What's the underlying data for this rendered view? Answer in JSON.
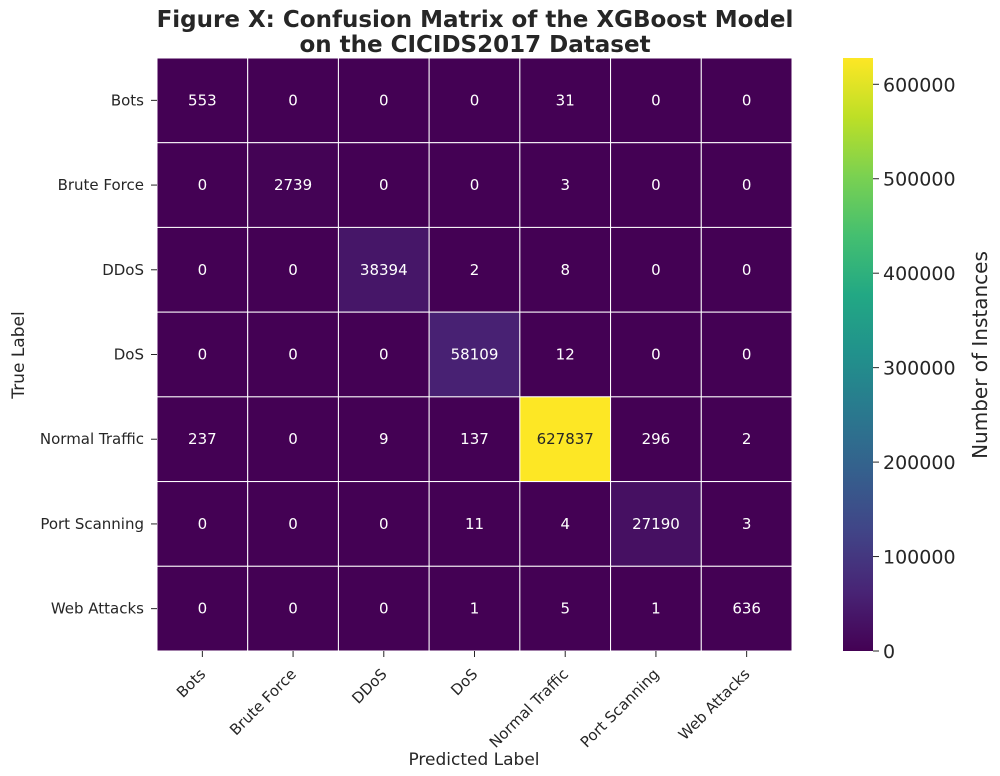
{
  "chart_data": {
    "type": "heatmap",
    "title": "Figure X: Confusion Matrix of the XGBoost Model",
    "subtitle": "on the CICIDS2017 Dataset",
    "xlabel": "Predicted Label",
    "ylabel": "True Label",
    "x_categories": [
      "Bots",
      "Brute Force",
      "DDoS",
      "DoS",
      "Normal Traffic",
      "Port Scanning",
      "Web Attacks"
    ],
    "y_categories": [
      "Bots",
      "Brute Force",
      "DDoS",
      "DoS",
      "Normal Traffic",
      "Port Scanning",
      "Web Attacks"
    ],
    "values": [
      [
        553,
        0,
        0,
        0,
        31,
        0,
        0
      ],
      [
        0,
        2739,
        0,
        0,
        3,
        0,
        0
      ],
      [
        0,
        0,
        38394,
        2,
        8,
        0,
        0
      ],
      [
        0,
        0,
        0,
        58109,
        12,
        0,
        0
      ],
      [
        237,
        0,
        9,
        137,
        627837,
        296,
        2
      ],
      [
        0,
        0,
        0,
        11,
        4,
        27190,
        3
      ],
      [
        0,
        0,
        0,
        1,
        5,
        1,
        636
      ]
    ],
    "colormap": "viridis",
    "colorbar": {
      "label": "Number of Instances",
      "range": [
        0,
        627837
      ],
      "ticks": [
        0,
        100000,
        200000,
        300000,
        400000,
        500000,
        600000
      ],
      "tick_labels": [
        "0",
        "100000",
        "200000",
        "300000",
        "400000",
        "500000",
        "600000"
      ]
    },
    "grid": true,
    "cell_border_color": "#ffffff"
  }
}
